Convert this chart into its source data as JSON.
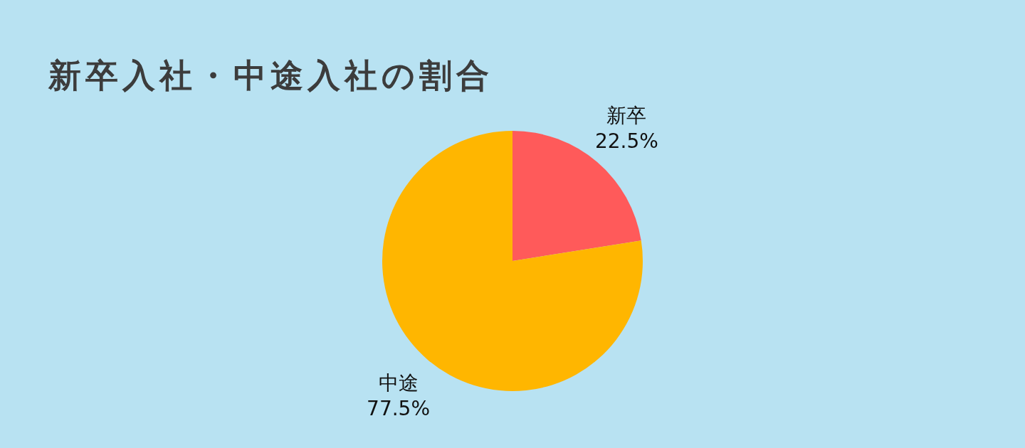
{
  "chart_data": {
    "type": "pie",
    "title": "新卒入社・中途入社の割合",
    "categories": [
      "新卒",
      "中途"
    ],
    "values": [
      22.5,
      77.5
    ],
    "colors": [
      "#ff5a5a",
      "#ffb600"
    ],
    "value_labels": [
      "22.5%",
      "77.5%"
    ]
  }
}
